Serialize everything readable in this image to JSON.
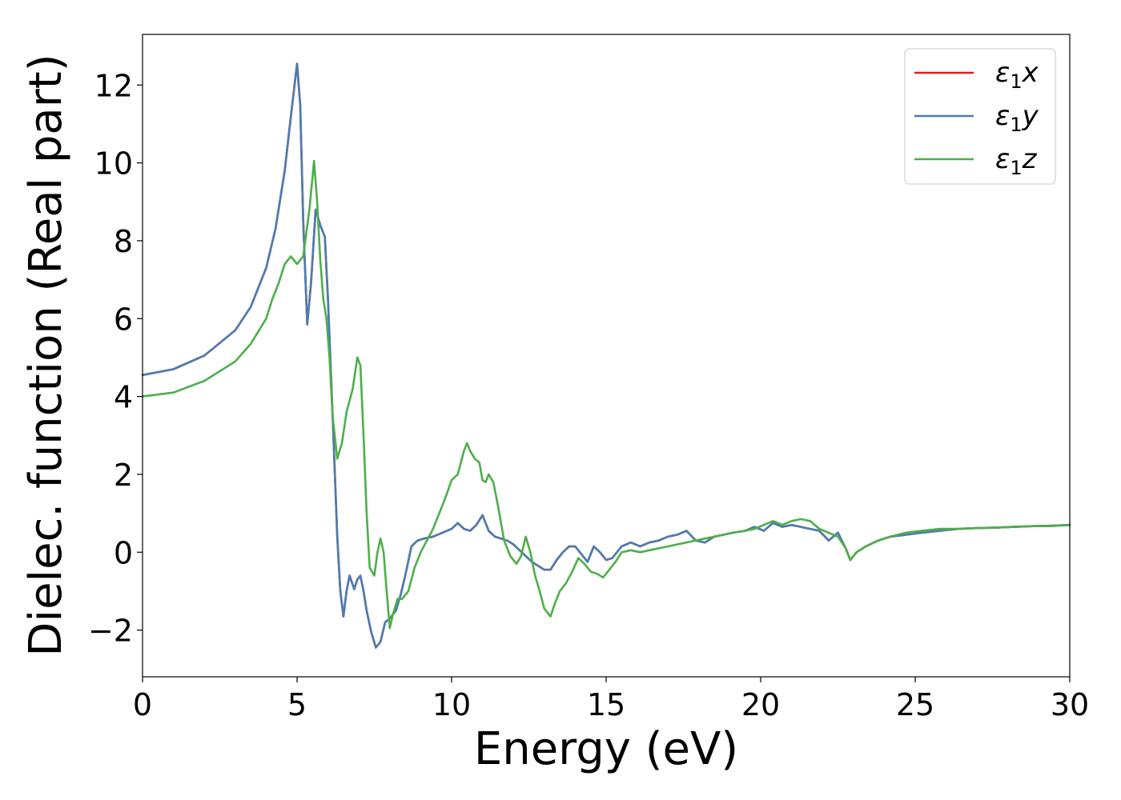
{
  "chart_data": {
    "type": "line",
    "title": "",
    "xlabel": "Energy (eV)",
    "ylabel": "Dielec. function (Real part)",
    "xlim": [
      0,
      30
    ],
    "ylim": [
      -3.2,
      13.3
    ],
    "xticks": [
      0,
      5,
      10,
      15,
      20,
      25,
      30
    ],
    "xtick_labels": [
      "0",
      "5",
      "10",
      "15",
      "20",
      "25",
      "30"
    ],
    "yticks": [
      -2,
      0,
      2,
      4,
      6,
      8,
      10,
      12
    ],
    "ytick_labels": [
      "−2",
      "0",
      "2",
      "4",
      "6",
      "8",
      "10",
      "12"
    ],
    "grid": false,
    "legend_position": "top-right",
    "series": [
      {
        "name": "ε₁x",
        "label_base": "ε",
        "label_sub": "1",
        "label_var": "x",
        "color": "#e41a1c",
        "x": [
          0,
          1,
          2,
          3,
          3.5,
          4,
          4.3,
          4.6,
          4.8,
          5.0,
          5.1,
          5.2,
          5.33,
          5.45,
          5.6,
          5.75,
          5.9,
          6.0,
          6.1,
          6.2,
          6.3,
          6.4,
          6.5,
          6.6,
          6.7,
          6.85,
          6.95,
          7.05,
          7.15,
          7.25,
          7.4,
          7.55,
          7.7,
          7.85,
          8.0,
          8.2,
          8.35,
          8.5,
          8.7,
          8.9,
          9.1,
          9.4,
          9.7,
          10.0,
          10.2,
          10.4,
          10.6,
          10.8,
          11.0,
          11.2,
          11.4,
          11.6,
          11.8,
          12.0,
          12.2,
          12.4,
          12.6,
          12.8,
          13.0,
          13.2,
          13.4,
          13.6,
          13.8,
          14.0,
          14.2,
          14.4,
          14.6,
          14.8,
          15.0,
          15.2,
          15.5,
          15.8,
          16.1,
          16.4,
          16.7,
          17.0,
          17.3,
          17.6,
          17.9,
          18.2,
          18.5,
          18.8,
          19.1,
          19.5,
          19.8,
          20.1,
          20.4,
          20.7,
          21.0,
          21.3,
          21.6,
          21.9,
          22.2,
          22.5,
          22.75,
          22.9,
          23.1,
          23.4,
          23.8,
          24.2,
          24.7,
          25.2,
          25.8,
          26.4,
          27.0,
          27.6,
          28.2,
          28.8,
          29.4,
          30.0
        ],
        "y": [
          4.55,
          4.7,
          5.05,
          5.7,
          6.3,
          7.3,
          8.3,
          9.8,
          11.2,
          12.55,
          11.5,
          8.5,
          5.85,
          6.9,
          8.8,
          8.4,
          8.1,
          6.5,
          4.5,
          2.5,
          0.4,
          -1.0,
          -1.65,
          -1.0,
          -0.6,
          -0.95,
          -0.7,
          -0.6,
          -1.0,
          -1.5,
          -2.05,
          -2.45,
          -2.3,
          -1.8,
          -1.7,
          -1.5,
          -1.1,
          -0.6,
          0.15,
          0.3,
          0.35,
          0.4,
          0.5,
          0.6,
          0.75,
          0.6,
          0.55,
          0.7,
          0.95,
          0.55,
          0.4,
          0.35,
          0.3,
          0.2,
          0.05,
          -0.1,
          -0.25,
          -0.35,
          -0.45,
          -0.45,
          -0.2,
          0.0,
          0.15,
          0.15,
          -0.05,
          -0.25,
          0.15,
          0.0,
          -0.2,
          -0.15,
          0.15,
          0.25,
          0.15,
          0.25,
          0.3,
          0.4,
          0.45,
          0.55,
          0.3,
          0.25,
          0.4,
          0.45,
          0.5,
          0.55,
          0.65,
          0.55,
          0.75,
          0.65,
          0.7,
          0.65,
          0.6,
          0.55,
          0.3,
          0.5,
          0.1,
          -0.2,
          0.0,
          0.15,
          0.3,
          0.4,
          0.45,
          0.5,
          0.55,
          0.6,
          0.62,
          0.63,
          0.65,
          0.67,
          0.68,
          0.7
        ]
      },
      {
        "name": "ε₁y",
        "label_base": "ε",
        "label_sub": "1",
        "label_var": "y",
        "color": "#4a7db1",
        "x": [
          0,
          1,
          2,
          3,
          3.5,
          4,
          4.3,
          4.6,
          4.8,
          5.0,
          5.1,
          5.2,
          5.33,
          5.45,
          5.6,
          5.75,
          5.9,
          6.0,
          6.1,
          6.2,
          6.3,
          6.4,
          6.5,
          6.6,
          6.7,
          6.85,
          6.95,
          7.05,
          7.15,
          7.25,
          7.4,
          7.55,
          7.7,
          7.85,
          8.0,
          8.2,
          8.35,
          8.5,
          8.7,
          8.9,
          9.1,
          9.4,
          9.7,
          10.0,
          10.2,
          10.4,
          10.6,
          10.8,
          11.0,
          11.2,
          11.4,
          11.6,
          11.8,
          12.0,
          12.2,
          12.4,
          12.6,
          12.8,
          13.0,
          13.2,
          13.4,
          13.6,
          13.8,
          14.0,
          14.2,
          14.4,
          14.6,
          14.8,
          15.0,
          15.2,
          15.5,
          15.8,
          16.1,
          16.4,
          16.7,
          17.0,
          17.3,
          17.6,
          17.9,
          18.2,
          18.5,
          18.8,
          19.1,
          19.5,
          19.8,
          20.1,
          20.4,
          20.7,
          21.0,
          21.3,
          21.6,
          21.9,
          22.2,
          22.5,
          22.75,
          22.9,
          23.1,
          23.4,
          23.8,
          24.2,
          24.7,
          25.2,
          25.8,
          26.4,
          27.0,
          27.6,
          28.2,
          28.8,
          29.4,
          30.0
        ],
        "y": [
          4.55,
          4.7,
          5.05,
          5.7,
          6.3,
          7.3,
          8.3,
          9.8,
          11.2,
          12.55,
          11.5,
          8.5,
          5.85,
          6.9,
          8.8,
          8.4,
          8.1,
          6.5,
          4.5,
          2.5,
          0.4,
          -1.0,
          -1.65,
          -1.0,
          -0.6,
          -0.95,
          -0.7,
          -0.6,
          -1.0,
          -1.5,
          -2.05,
          -2.45,
          -2.3,
          -1.8,
          -1.7,
          -1.5,
          -1.1,
          -0.6,
          0.15,
          0.3,
          0.35,
          0.4,
          0.5,
          0.6,
          0.75,
          0.6,
          0.55,
          0.7,
          0.95,
          0.55,
          0.4,
          0.35,
          0.3,
          0.2,
          0.05,
          -0.1,
          -0.25,
          -0.35,
          -0.45,
          -0.45,
          -0.2,
          0.0,
          0.15,
          0.15,
          -0.05,
          -0.25,
          0.15,
          0.0,
          -0.2,
          -0.15,
          0.15,
          0.25,
          0.15,
          0.25,
          0.3,
          0.4,
          0.45,
          0.55,
          0.3,
          0.25,
          0.4,
          0.45,
          0.5,
          0.55,
          0.65,
          0.55,
          0.75,
          0.65,
          0.7,
          0.65,
          0.6,
          0.55,
          0.3,
          0.5,
          0.1,
          -0.2,
          0.0,
          0.15,
          0.3,
          0.4,
          0.45,
          0.5,
          0.55,
          0.6,
          0.62,
          0.63,
          0.65,
          0.67,
          0.68,
          0.7
        ]
      },
      {
        "name": "ε₁z",
        "label_base": "ε",
        "label_sub": "1",
        "label_var": "z",
        "color": "#4daf4a",
        "x": [
          0,
          1,
          2,
          3,
          3.5,
          4,
          4.2,
          4.4,
          4.6,
          4.8,
          5.0,
          5.2,
          5.4,
          5.55,
          5.65,
          5.75,
          5.85,
          5.95,
          6.05,
          6.15,
          6.3,
          6.45,
          6.6,
          6.8,
          6.95,
          7.05,
          7.15,
          7.25,
          7.35,
          7.5,
          7.6,
          7.7,
          7.8,
          7.9,
          8.0,
          8.1,
          8.25,
          8.4,
          8.6,
          8.8,
          9.0,
          9.2,
          9.4,
          9.6,
          9.8,
          10.0,
          10.2,
          10.4,
          10.5,
          10.6,
          10.75,
          10.9,
          11.0,
          11.1,
          11.2,
          11.35,
          11.5,
          11.7,
          11.9,
          12.1,
          12.25,
          12.4,
          12.55,
          12.7,
          12.85,
          13.0,
          13.2,
          13.35,
          13.5,
          13.7,
          13.9,
          14.1,
          14.3,
          14.5,
          14.7,
          14.9,
          15.1,
          15.3,
          15.5,
          15.8,
          16.1,
          16.4,
          16.7,
          17.0,
          17.3,
          17.6,
          17.9,
          18.2,
          18.5,
          18.8,
          19.1,
          19.5,
          19.8,
          20.1,
          20.4,
          20.7,
          21.0,
          21.3,
          21.6,
          21.9,
          22.2,
          22.5,
          22.75,
          22.9,
          23.1,
          23.4,
          23.8,
          24.2,
          24.7,
          25.2,
          25.8,
          26.4,
          27.0,
          27.6,
          28.2,
          28.8,
          29.4,
          30.0
        ],
        "y": [
          4.0,
          4.1,
          4.4,
          4.9,
          5.35,
          6.0,
          6.5,
          6.9,
          7.4,
          7.6,
          7.4,
          7.6,
          8.8,
          10.05,
          9.0,
          7.5,
          6.5,
          6.0,
          5.0,
          3.5,
          2.4,
          2.8,
          3.6,
          4.2,
          5.0,
          4.8,
          3.0,
          1.0,
          -0.4,
          -0.6,
          0.0,
          0.35,
          0.0,
          -1.0,
          -1.95,
          -1.6,
          -1.2,
          -1.2,
          -1.0,
          -0.4,
          0.0,
          0.3,
          0.6,
          1.0,
          1.4,
          1.85,
          2.0,
          2.6,
          2.8,
          2.6,
          2.4,
          2.3,
          1.85,
          1.8,
          2.0,
          1.8,
          1.2,
          0.3,
          -0.1,
          -0.3,
          -0.1,
          0.4,
          0.0,
          -0.6,
          -1.0,
          -1.45,
          -1.65,
          -1.3,
          -1.0,
          -0.8,
          -0.5,
          -0.15,
          -0.3,
          -0.5,
          -0.55,
          -0.65,
          -0.45,
          -0.25,
          0.0,
          0.05,
          0.0,
          0.05,
          0.1,
          0.15,
          0.2,
          0.25,
          0.3,
          0.35,
          0.4,
          0.45,
          0.5,
          0.55,
          0.6,
          0.7,
          0.8,
          0.7,
          0.8,
          0.85,
          0.8,
          0.6,
          0.5,
          0.4,
          0.1,
          -0.2,
          0.0,
          0.15,
          0.3,
          0.4,
          0.5,
          0.55,
          0.6,
          0.6,
          0.62,
          0.63,
          0.65,
          0.67,
          0.67,
          0.7
        ]
      }
    ]
  }
}
